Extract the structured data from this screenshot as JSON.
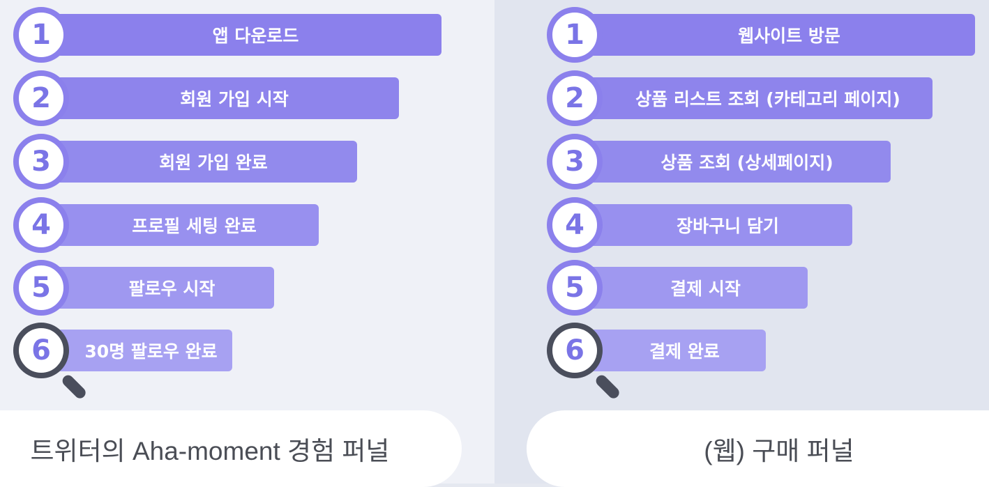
{
  "colors": {
    "step_1": "#8b80ec",
    "step_2": "#8e84ec",
    "step_3": "#928aed",
    "step_4": "#9890ef",
    "step_5": "#9f98f0",
    "step_6": "#a7a1f2",
    "circle_border": "#8b80ec",
    "magnifier": "#4a4e5c",
    "number": "#7a74e6"
  },
  "left_funnel": {
    "caption": "트위터의 Aha-moment 경험 퍼널",
    "steps": [
      {
        "number": "1",
        "label": "앱 다운로드"
      },
      {
        "number": "2",
        "label": "회원 가입 시작"
      },
      {
        "number": "3",
        "label": "회원 가입 완료"
      },
      {
        "number": "4",
        "label": "프로필 세팅 완료"
      },
      {
        "number": "5",
        "label": "팔로우 시작"
      },
      {
        "number": "6",
        "label": "30명 팔로우 완료",
        "magnifier_icon": "magnifying-glass-icon"
      }
    ]
  },
  "right_funnel": {
    "caption": "(웹) 구매 퍼널",
    "steps": [
      {
        "number": "1",
        "label": "웹사이트 방문"
      },
      {
        "number": "2",
        "label": "상품 리스트 조회 (카테고리 페이지)"
      },
      {
        "number": "3",
        "label": "상품 조회 (상세페이지)"
      },
      {
        "number": "4",
        "label": "장바구니 담기"
      },
      {
        "number": "5",
        "label": "결제 시작"
      },
      {
        "number": "6",
        "label": "결제 완료",
        "magnifier_icon": "magnifying-glass-icon"
      }
    ]
  }
}
